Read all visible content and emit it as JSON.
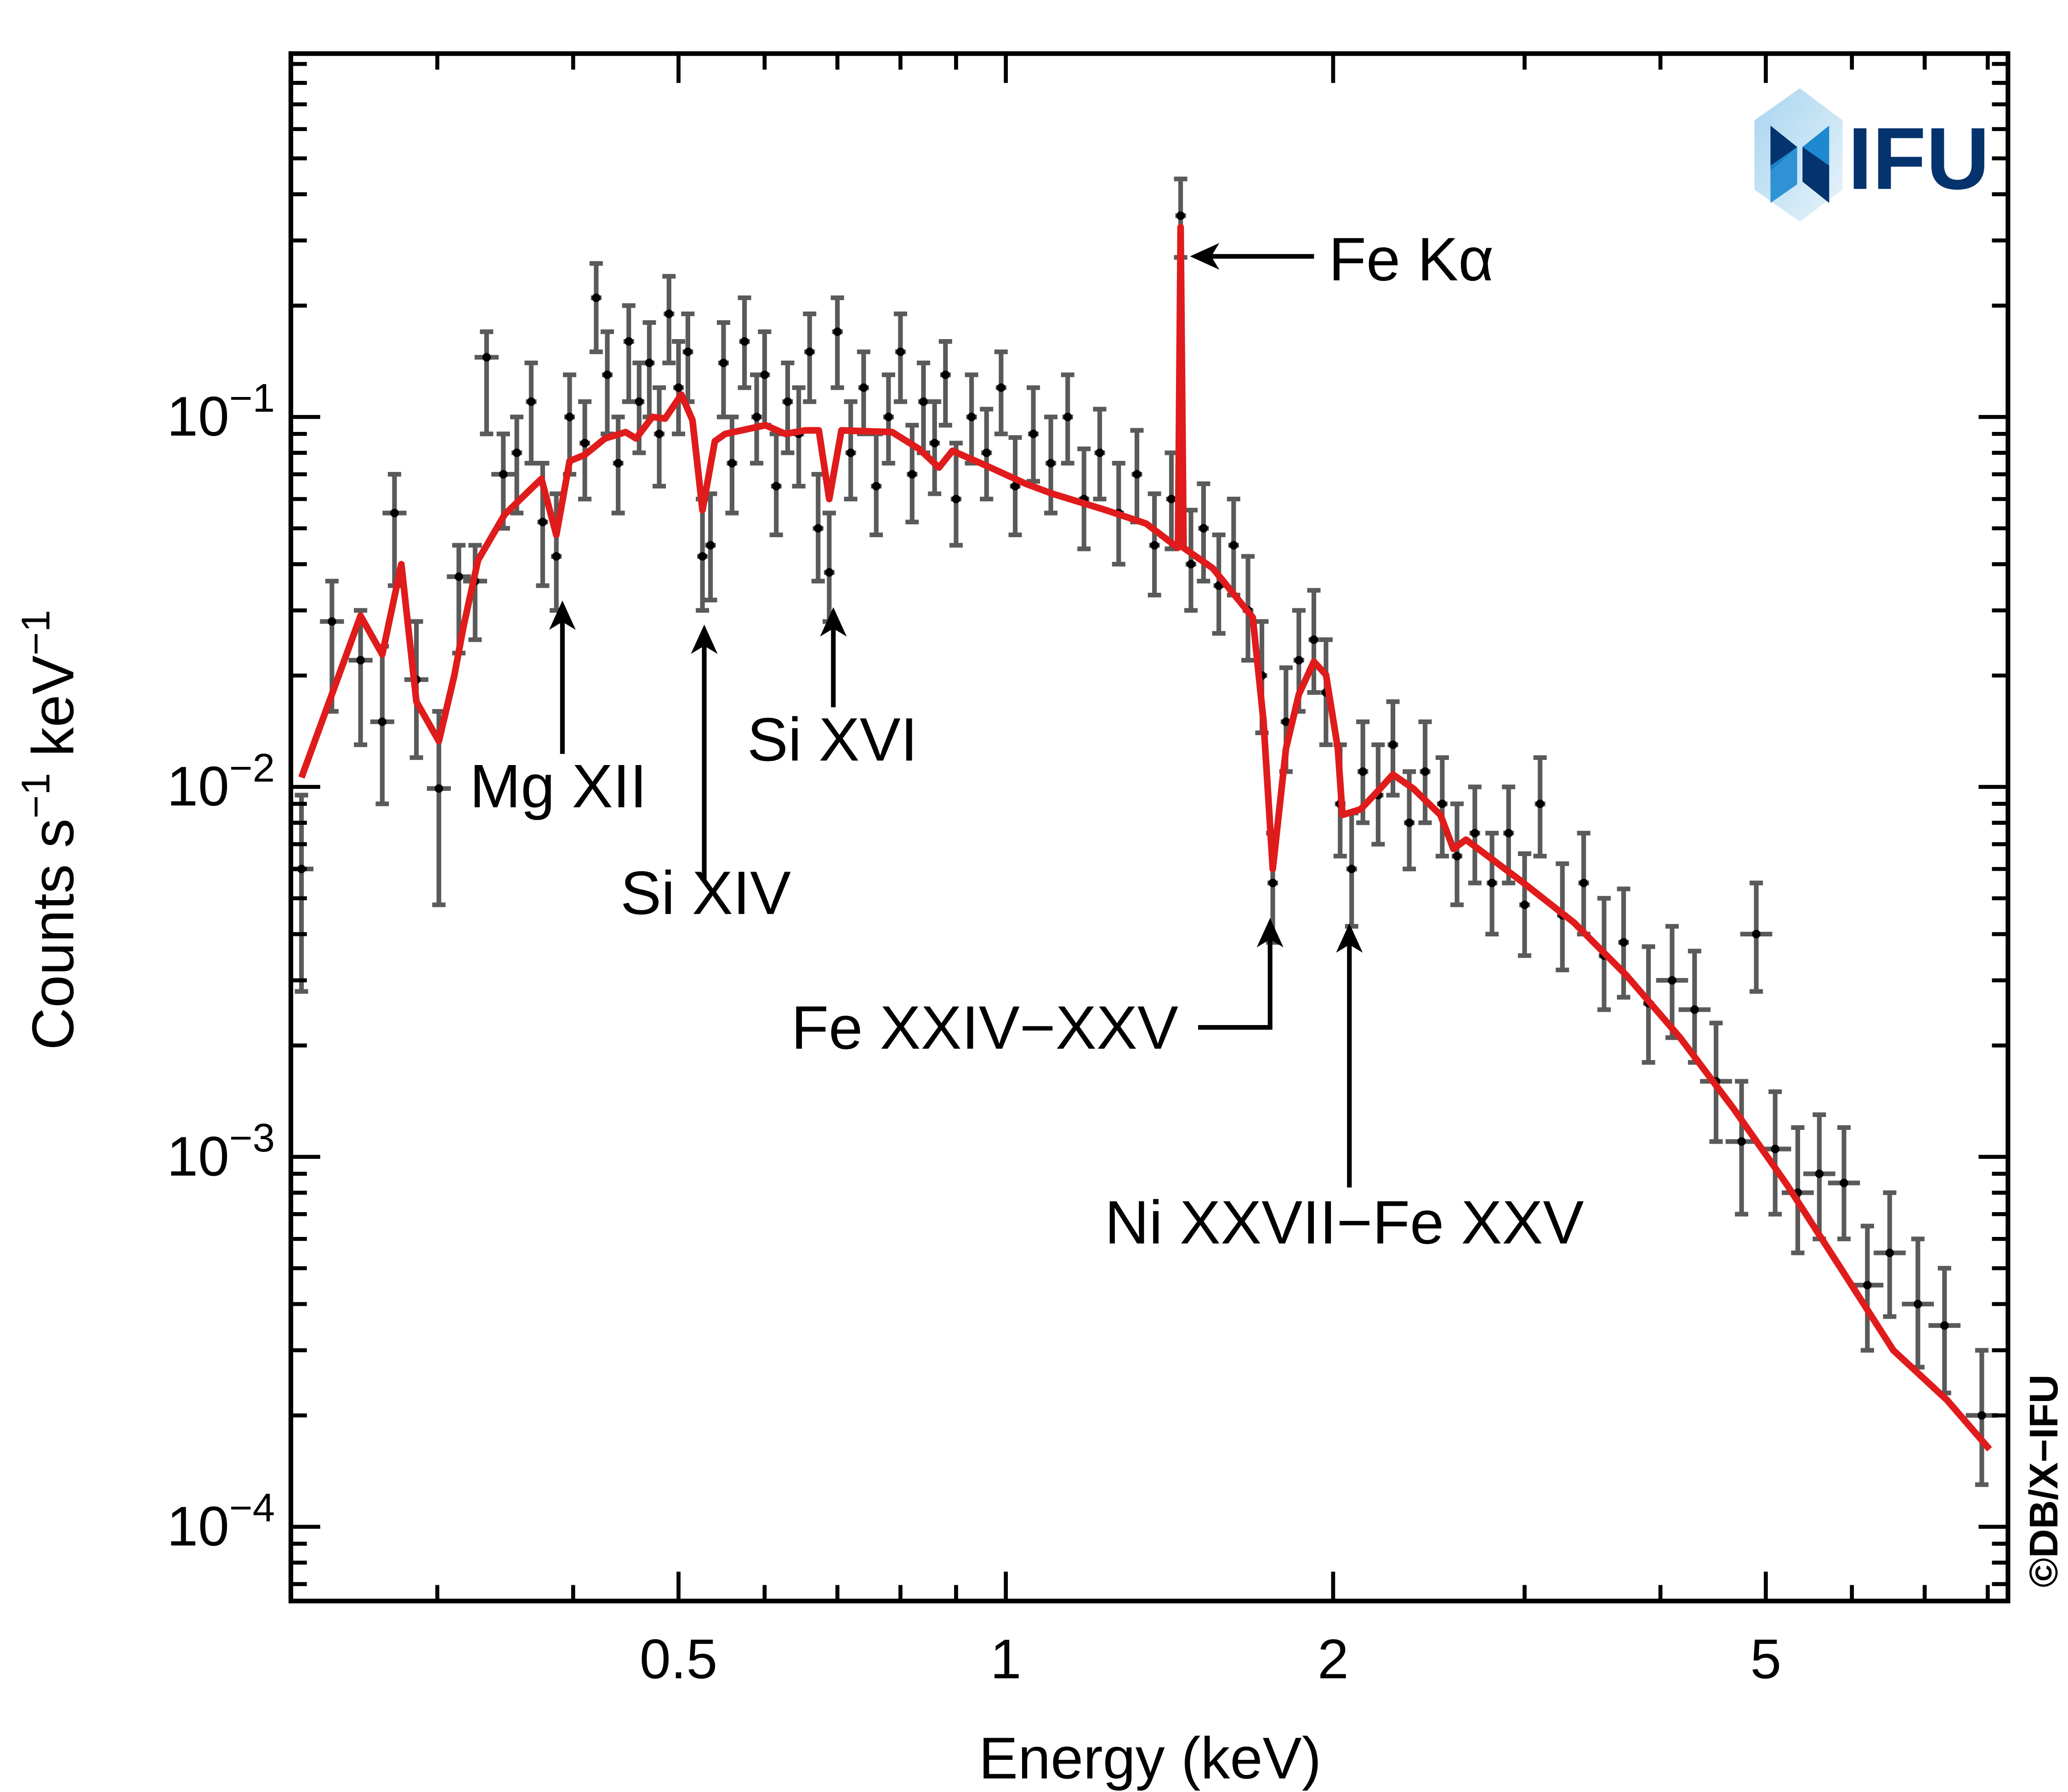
{
  "chart_data": {
    "type": "scatter",
    "title": "",
    "xlabel": "Energy (keV)",
    "ylabel_parts": [
      "Counts s",
      "−1",
      " keV",
      "−1"
    ],
    "xscale": "log",
    "yscale": "log",
    "xlim": [
      0.22,
      8.35
    ],
    "ylim": [
      6.3e-05,
      0.96
    ],
    "grid": false,
    "x_ticks": [
      {
        "value": 0.5,
        "label": "0.5"
      },
      {
        "value": 1,
        "label": "1"
      },
      {
        "value": 2,
        "label": "2"
      },
      {
        "value": 5,
        "label": "5"
      }
    ],
    "y_ticks": [
      {
        "value": 0.1,
        "base": "10",
        "exp": "−1"
      },
      {
        "value": 0.01,
        "base": "10",
        "exp": "−2"
      },
      {
        "value": 0.001,
        "base": "10",
        "exp": "−3"
      },
      {
        "value": 0.0001,
        "base": "10",
        "exp": "−4"
      }
    ],
    "colors": {
      "data": "#5a5a5a",
      "points": "#000000",
      "model": "#e01b1b",
      "logo_dark": "#05336e",
      "logo_light": "#1e88d0"
    },
    "data_points_columns": [
      "energy_keV",
      "counts",
      "counts_low",
      "counts_high"
    ],
    "data_points": [
      [
        0.225,
        0.006,
        0.0028,
        0.0095
      ],
      [
        0.24,
        0.028,
        0.016,
        0.036
      ],
      [
        0.255,
        0.022,
        0.013,
        0.03
      ],
      [
        0.267,
        0.015,
        0.009,
        0.024
      ],
      [
        0.274,
        0.055,
        0.035,
        0.07
      ],
      [
        0.287,
        0.0195,
        0.012,
        0.028
      ],
      [
        0.301,
        0.0099,
        0.0048,
        0.016
      ],
      [
        0.314,
        0.037,
        0.023,
        0.045
      ],
      [
        0.325,
        0.036,
        0.025,
        0.045
      ],
      [
        0.333,
        0.145,
        0.09,
        0.17
      ],
      [
        0.345,
        0.07,
        0.05,
        0.09
      ],
      [
        0.355,
        0.08,
        0.055,
        0.1
      ],
      [
        0.366,
        0.11,
        0.075,
        0.14
      ],
      [
        0.375,
        0.052,
        0.035,
        0.075
      ],
      [
        0.386,
        0.042,
        0.03,
        0.062
      ],
      [
        0.397,
        0.1,
        0.07,
        0.13
      ],
      [
        0.41,
        0.085,
        0.06,
        0.11
      ],
      [
        0.42,
        0.21,
        0.15,
        0.26
      ],
      [
        0.43,
        0.13,
        0.09,
        0.17
      ],
      [
        0.44,
        0.075,
        0.055,
        0.1
      ],
      [
        0.45,
        0.16,
        0.11,
        0.2
      ],
      [
        0.46,
        0.11,
        0.08,
        0.14
      ],
      [
        0.47,
        0.14,
        0.1,
        0.18
      ],
      [
        0.48,
        0.09,
        0.065,
        0.12
      ],
      [
        0.49,
        0.19,
        0.14,
        0.24
      ],
      [
        0.5,
        0.12,
        0.09,
        0.16
      ],
      [
        0.51,
        0.15,
        0.11,
        0.19
      ],
      [
        0.526,
        0.042,
        0.03,
        0.06
      ],
      [
        0.535,
        0.045,
        0.032,
        0.062
      ],
      [
        0.55,
        0.14,
        0.1,
        0.18
      ],
      [
        0.56,
        0.075,
        0.055,
        0.1
      ],
      [
        0.575,
        0.16,
        0.12,
        0.21
      ],
      [
        0.59,
        0.1,
        0.075,
        0.13
      ],
      [
        0.6,
        0.13,
        0.095,
        0.17
      ],
      [
        0.615,
        0.065,
        0.048,
        0.09
      ],
      [
        0.63,
        0.11,
        0.08,
        0.14
      ],
      [
        0.645,
        0.09,
        0.065,
        0.12
      ],
      [
        0.66,
        0.15,
        0.11,
        0.19
      ],
      [
        0.672,
        0.05,
        0.036,
        0.07
      ],
      [
        0.688,
        0.038,
        0.028,
        0.055
      ],
      [
        0.7,
        0.17,
        0.12,
        0.21
      ],
      [
        0.72,
        0.08,
        0.06,
        0.11
      ],
      [
        0.74,
        0.12,
        0.09,
        0.15
      ],
      [
        0.76,
        0.065,
        0.048,
        0.09
      ],
      [
        0.78,
        0.1,
        0.075,
        0.13
      ],
      [
        0.8,
        0.15,
        0.11,
        0.19
      ],
      [
        0.82,
        0.07,
        0.052,
        0.095
      ],
      [
        0.84,
        0.11,
        0.08,
        0.14
      ],
      [
        0.86,
        0.085,
        0.062,
        0.11
      ],
      [
        0.88,
        0.13,
        0.095,
        0.16
      ],
      [
        0.9,
        0.06,
        0.045,
        0.085
      ],
      [
        0.93,
        0.1,
        0.075,
        0.13
      ],
      [
        0.96,
        0.08,
        0.06,
        0.105
      ],
      [
        0.99,
        0.12,
        0.09,
        0.15
      ],
      [
        1.02,
        0.065,
        0.048,
        0.088
      ],
      [
        1.06,
        0.09,
        0.067,
        0.12
      ],
      [
        1.1,
        0.075,
        0.055,
        0.1
      ],
      [
        1.14,
        0.1,
        0.075,
        0.13
      ],
      [
        1.18,
        0.06,
        0.044,
        0.082
      ],
      [
        1.22,
        0.08,
        0.06,
        0.105
      ],
      [
        1.27,
        0.055,
        0.04,
        0.075
      ],
      [
        1.32,
        0.07,
        0.052,
        0.092
      ],
      [
        1.37,
        0.045,
        0.033,
        0.062
      ],
      [
        1.42,
        0.06,
        0.044,
        0.08
      ],
      [
        1.448,
        0.35,
        0.27,
        0.44
      ],
      [
        1.48,
        0.04,
        0.03,
        0.056
      ],
      [
        1.52,
        0.05,
        0.036,
        0.066
      ],
      [
        1.57,
        0.035,
        0.026,
        0.048
      ],
      [
        1.62,
        0.045,
        0.033,
        0.06
      ],
      [
        1.67,
        0.03,
        0.022,
        0.042
      ],
      [
        1.72,
        0.02,
        0.014,
        0.028
      ],
      [
        1.76,
        0.0055,
        0.0038,
        0.0075
      ],
      [
        1.81,
        0.015,
        0.011,
        0.021
      ],
      [
        1.86,
        0.022,
        0.016,
        0.03
      ],
      [
        1.92,
        0.025,
        0.018,
        0.034
      ],
      [
        1.97,
        0.018,
        0.013,
        0.025
      ],
      [
        2.03,
        0.009,
        0.0065,
        0.013
      ],
      [
        2.08,
        0.006,
        0.0042,
        0.0085
      ],
      [
        2.13,
        0.011,
        0.008,
        0.015
      ],
      [
        2.2,
        0.0095,
        0.007,
        0.013
      ],
      [
        2.27,
        0.013,
        0.0095,
        0.017
      ],
      [
        2.35,
        0.008,
        0.006,
        0.011
      ],
      [
        2.43,
        0.011,
        0.008,
        0.015
      ],
      [
        2.52,
        0.009,
        0.0065,
        0.012
      ],
      [
        2.6,
        0.0065,
        0.0048,
        0.009
      ],
      [
        2.7,
        0.0075,
        0.0055,
        0.01
      ],
      [
        2.8,
        0.0055,
        0.004,
        0.0075
      ],
      [
        2.9,
        0.0075,
        0.0055,
        0.01
      ],
      [
        3.0,
        0.0048,
        0.0035,
        0.0066
      ],
      [
        3.1,
        0.009,
        0.0065,
        0.012
      ],
      [
        3.25,
        0.0045,
        0.0032,
        0.0062
      ],
      [
        3.4,
        0.0055,
        0.004,
        0.0075
      ],
      [
        3.55,
        0.0035,
        0.0025,
        0.005
      ],
      [
        3.7,
        0.0038,
        0.0027,
        0.0053
      ],
      [
        3.9,
        0.0026,
        0.0018,
        0.0037
      ],
      [
        4.1,
        0.003,
        0.0021,
        0.0042
      ],
      [
        4.3,
        0.0025,
        0.0018,
        0.0036
      ],
      [
        4.5,
        0.0016,
        0.0011,
        0.0023
      ],
      [
        4.75,
        0.0011,
        0.0007,
        0.0016
      ],
      [
        4.9,
        0.004,
        0.0028,
        0.0055
      ],
      [
        5.1,
        0.00105,
        0.0007,
        0.0015
      ],
      [
        5.35,
        0.0008,
        0.00055,
        0.0012
      ],
      [
        5.6,
        0.0009,
        0.0006,
        0.0013
      ],
      [
        5.9,
        0.00085,
        0.0006,
        0.0012
      ],
      [
        6.2,
        0.00045,
        0.0003,
        0.00065
      ],
      [
        6.5,
        0.00055,
        0.00037,
        0.0008
      ],
      [
        6.9,
        0.0004,
        0.00027,
        0.0006
      ],
      [
        7.3,
        0.00035,
        0.00023,
        0.0005
      ],
      [
        7.9,
        0.0002,
        0.00013,
        0.0003
      ]
    ],
    "model_curve": [
      [
        0.225,
        0.0106
      ],
      [
        0.255,
        0.029
      ],
      [
        0.267,
        0.0228
      ],
      [
        0.278,
        0.04
      ],
      [
        0.287,
        0.017
      ],
      [
        0.301,
        0.0133
      ],
      [
        0.311,
        0.02
      ],
      [
        0.317,
        0.027
      ],
      [
        0.327,
        0.041
      ],
      [
        0.346,
        0.0545
      ],
      [
        0.366,
        0.064
      ],
      [
        0.374,
        0.068
      ],
      [
        0.386,
        0.048
      ],
      [
        0.397,
        0.076
      ],
      [
        0.41,
        0.079
      ],
      [
        0.428,
        0.0875
      ],
      [
        0.447,
        0.091
      ],
      [
        0.457,
        0.0875
      ],
      [
        0.473,
        0.1
      ],
      [
        0.486,
        0.099
      ],
      [
        0.503,
        0.115
      ],
      [
        0.515,
        0.098
      ],
      [
        0.526,
        0.056
      ],
      [
        0.54,
        0.086
      ],
      [
        0.552,
        0.09
      ],
      [
        0.601,
        0.095
      ],
      [
        0.627,
        0.09
      ],
      [
        0.654,
        0.092
      ],
      [
        0.673,
        0.092
      ],
      [
        0.688,
        0.06
      ],
      [
        0.706,
        0.092
      ],
      [
        0.786,
        0.091
      ],
      [
        0.832,
        0.082
      ],
      [
        0.868,
        0.073
      ],
      [
        0.893,
        0.081
      ],
      [
        0.958,
        0.074
      ],
      [
        1.043,
        0.066
      ],
      [
        1.104,
        0.062
      ],
      [
        1.236,
        0.056
      ],
      [
        1.346,
        0.0515
      ],
      [
        1.44,
        0.0443
      ],
      [
        1.448,
        0.326
      ],
      [
        1.457,
        0.0443
      ],
      [
        1.55,
        0.039
      ],
      [
        1.687,
        0.0287
      ],
      [
        1.726,
        0.015
      ],
      [
        1.76,
        0.006
      ],
      [
        1.81,
        0.0127
      ],
      [
        1.86,
        0.0178
      ],
      [
        1.92,
        0.0218
      ],
      [
        1.97,
        0.0201
      ],
      [
        2.02,
        0.0127
      ],
      [
        2.04,
        0.0084
      ],
      [
        2.12,
        0.0087
      ],
      [
        2.21,
        0.0099
      ],
      [
        2.27,
        0.0108
      ],
      [
        2.37,
        0.0099
      ],
      [
        2.51,
        0.0084
      ],
      [
        2.58,
        0.0068
      ],
      [
        2.65,
        0.0072
      ],
      [
        2.97,
        0.0056
      ],
      [
        3.33,
        0.0043
      ],
      [
        3.72,
        0.0031
      ],
      [
        4.17,
        0.0021
      ],
      [
        4.67,
        0.00135
      ],
      [
        5.23,
        0.00084
      ],
      [
        5.86,
        0.0005
      ],
      [
        6.55,
        0.0003
      ],
      [
        7.34,
        0.00022
      ],
      [
        8.03,
        0.000162
      ]
    ],
    "annotations": [
      {
        "label": "Mg XII",
        "energy": 0.391,
        "kind": "up-arrow"
      },
      {
        "label": "Si XIV",
        "energy": 0.528,
        "kind": "up-arrow"
      },
      {
        "label": "Si XVI",
        "energy": 0.694,
        "kind": "up-arrow"
      },
      {
        "label": "Fe Kα",
        "energy": 1.448,
        "kind": "left-arrow"
      },
      {
        "label": "Fe XXIV−XXV",
        "energy": 1.75,
        "kind": "elbow-arrow"
      },
      {
        "label": "Ni XXVII−Fe XXV",
        "energy": 2.07,
        "kind": "up-arrow"
      }
    ]
  },
  "logo": {
    "text": "IFU"
  },
  "copyright": "©DB/X−IFU"
}
